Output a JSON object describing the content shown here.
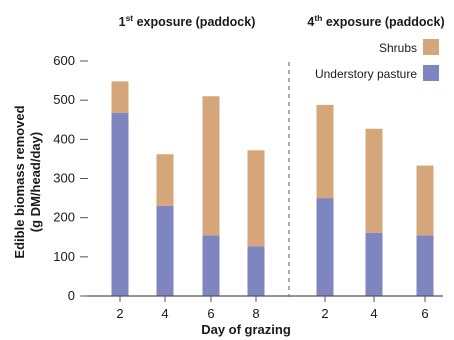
{
  "chart_data": {
    "type": "bar",
    "stacked": true,
    "xlabel": "Day of grazing",
    "ylabel_line1": "Edible biomass removed",
    "ylabel_line2": "(g DM/head/day)",
    "ylim": [
      0,
      600
    ],
    "yticks": [
      "0",
      "100",
      "200",
      "300",
      "400",
      "500",
      "600"
    ],
    "grid": false,
    "legend_position": "top-right",
    "panels": [
      {
        "title_prefix": "1",
        "title_sup": "st",
        "title_rest": " exposure (paddock)",
        "categories": [
          "2",
          "4",
          "6",
          "8"
        ],
        "series": [
          {
            "name": "Understory pasture",
            "color": "#7f86bf",
            "values": [
              468,
              230,
              155,
              127
            ]
          },
          {
            "name": "Shrubs",
            "color": "#d5a679",
            "values": [
              80,
              132,
              355,
              245
            ]
          }
        ]
      },
      {
        "title_prefix": "4",
        "title_sup": "th",
        "title_rest": " exposure (paddock)",
        "categories": [
          "2",
          "4",
          "6"
        ],
        "series": [
          {
            "name": "Understory pasture",
            "color": "#7f86bf",
            "values": [
              250,
              161,
              155
            ]
          },
          {
            "name": "Shrubs",
            "color": "#d5a679",
            "values": [
              238,
              266,
              178
            ]
          }
        ]
      }
    ],
    "legend": [
      {
        "label": "Shrubs",
        "color": "#d5a679"
      },
      {
        "label": "Understory pasture",
        "color": "#7f86bf"
      }
    ]
  }
}
